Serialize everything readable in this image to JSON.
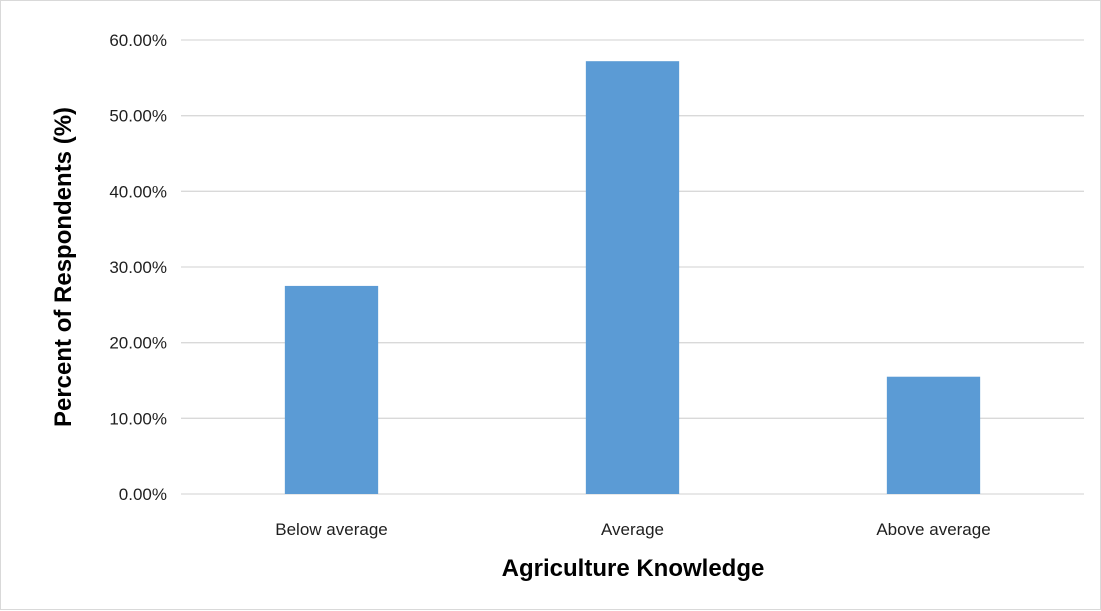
{
  "chart_data": {
    "type": "bar",
    "title": "",
    "xlabel": "Agriculture Knowledge",
    "ylabel": "Percent of Respondents (%)",
    "categories": [
      "Below average",
      "Average",
      "Above average"
    ],
    "values": [
      27.5,
      57.2,
      15.5
    ],
    "ylim": [
      0,
      60
    ],
    "yticks": [
      0,
      10,
      20,
      30,
      40,
      50,
      60
    ],
    "ytick_labels": [
      "0.00%",
      "10.00%",
      "20.00%",
      "30.00%",
      "40.00%",
      "50.00%",
      "60.00%"
    ],
    "grid": true,
    "legend": "none",
    "bar_color": "#5b9bd5",
    "grid_color": "#d9d9d9"
  }
}
